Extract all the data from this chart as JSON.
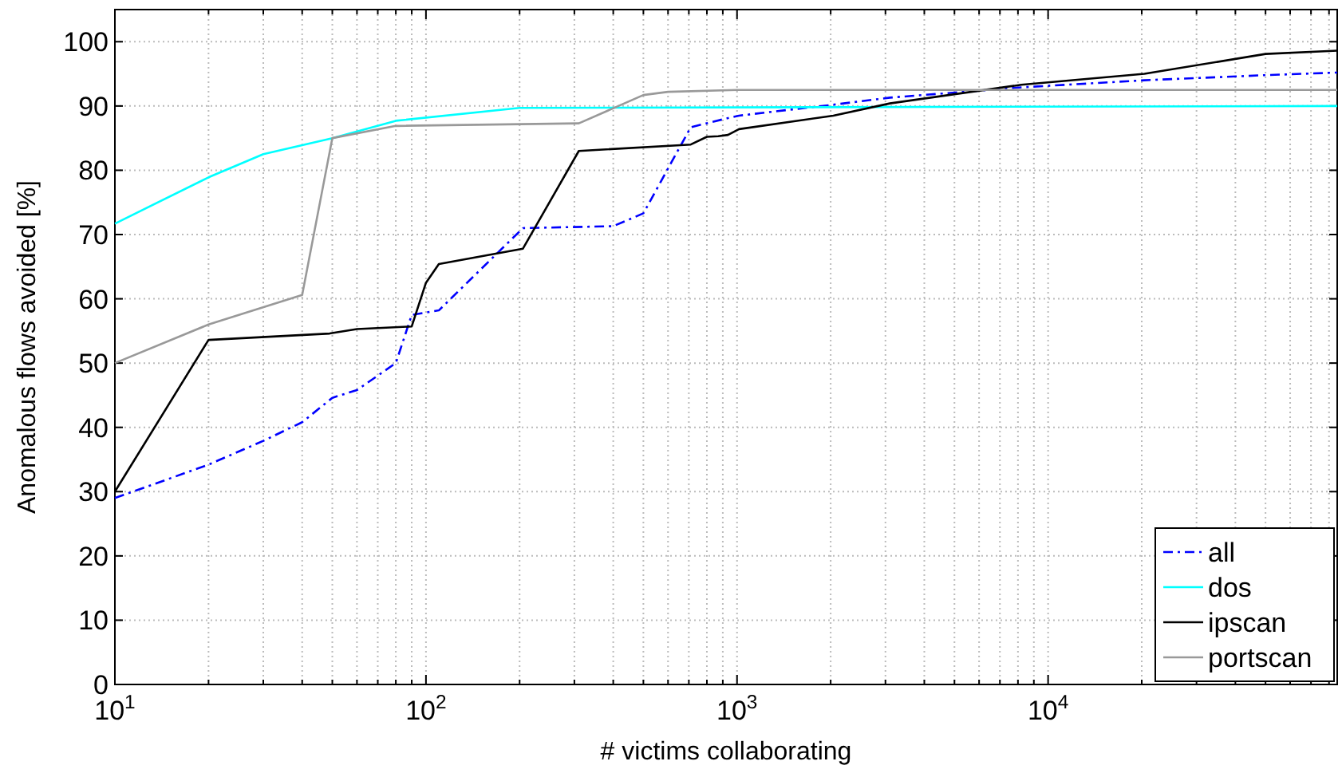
{
  "chart_data": {
    "type": "line",
    "xlabel": "# victims collaborating",
    "ylabel": "Anomalous flows avoided [%]",
    "log": "x",
    "grid": true,
    "legend": "bottom right",
    "xlim": [
      10,
      85000
    ],
    "ylim": [
      0,
      105
    ],
    "xticks": [
      {
        "value": 10,
        "label": "10$^{1}$"
      },
      {
        "value": 20,
        "label": null
      },
      {
        "value": 30,
        "label": null
      },
      {
        "value": 40,
        "label": null
      },
      {
        "value": 50,
        "label": null
      },
      {
        "value": 60,
        "label": null
      },
      {
        "value": 70,
        "label": null
      },
      {
        "value": 80,
        "label": null
      },
      {
        "value": 90,
        "label": null
      },
      {
        "value": 100,
        "label": "10$^{2}$"
      },
      {
        "value": 200,
        "label": null
      },
      {
        "value": 300,
        "label": null
      },
      {
        "value": 400,
        "label": null
      },
      {
        "value": 500,
        "label": null
      },
      {
        "value": 600,
        "label": null
      },
      {
        "value": 700,
        "label": null
      },
      {
        "value": 800,
        "label": null
      },
      {
        "value": 900,
        "label": null
      },
      {
        "value": 1000,
        "label": "10$^{3}$"
      },
      {
        "value": 2000,
        "label": null
      },
      {
        "value": 3000,
        "label": null
      },
      {
        "value": 4000,
        "label": null
      },
      {
        "value": 5000,
        "label": null
      },
      {
        "value": 6000,
        "label": null
      },
      {
        "value": 7000,
        "label": null
      },
      {
        "value": 8000,
        "label": null
      },
      {
        "value": 9000,
        "label": null
      },
      {
        "value": 10000,
        "label": "10$^{4}$"
      },
      {
        "value": 20000,
        "label": null
      },
      {
        "value": 30000,
        "label": null
      },
      {
        "value": 40000,
        "label": null
      },
      {
        "value": 50000,
        "label": null
      },
      {
        "value": 60000,
        "label": null
      },
      {
        "value": 70000,
        "label": null
      },
      {
        "value": 80000,
        "label": null
      }
    ],
    "yticks": [
      0,
      10,
      20,
      30,
      40,
      50,
      60,
      70,
      80,
      90,
      100
    ],
    "series": [
      {
        "name": "all",
        "color": "#0000ff",
        "line_style": "dashed",
        "x": [
          10,
          20,
          30,
          40,
          50,
          60,
          80,
          90,
          110,
          205,
          400,
          500,
          710,
          950,
          1015,
          2040,
          3100,
          8200,
          20400,
          50000,
          85000
        ],
        "values": [
          29,
          34.2,
          37.9,
          40.8,
          44.6,
          45.8,
          50,
          57.5,
          58.2,
          71,
          71.3,
          73.3,
          86.7,
          88.2,
          88.5,
          90.2,
          91.3,
          92.9,
          94,
          94.8,
          95.2
        ]
      },
      {
        "name": "dos",
        "color": "#00ffff",
        "line_style": "solid",
        "x": [
          10,
          20,
          30,
          50,
          80,
          200,
          85000
        ],
        "values": [
          71.7,
          78.9,
          82.5,
          85,
          87.7,
          89.7,
          90
        ]
      },
      {
        "name": "ipscan",
        "color": "#000000",
        "line_style": "solid",
        "x": [
          10,
          20,
          49,
          60,
          90,
          100,
          110,
          205,
          310,
          710,
          800,
          870,
          935,
          1015,
          2040,
          3100,
          8200,
          20400,
          50000,
          85000
        ],
        "values": [
          30,
          53.6,
          54.6,
          55.3,
          55.7,
          62.5,
          65.4,
          67.8,
          83,
          84,
          85.2,
          85.3,
          85.5,
          86.4,
          88.5,
          90.4,
          93.3,
          95,
          98.1,
          98.6
        ]
      },
      {
        "name": "portscan",
        "color": "#999999",
        "line_style": "solid",
        "x": [
          10,
          20,
          40,
          50,
          80,
          310,
          500,
          600,
          1000,
          85000
        ],
        "values": [
          50,
          56,
          60.6,
          85,
          86.9,
          87.3,
          91.7,
          92.2,
          92.5,
          92.5
        ]
      }
    ]
  }
}
